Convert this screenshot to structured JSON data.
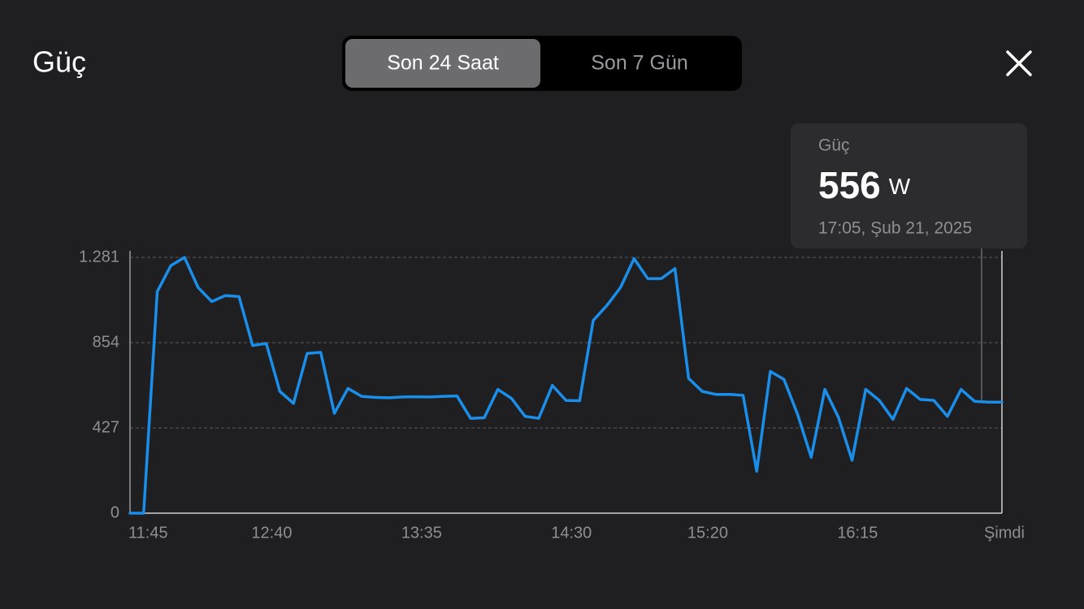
{
  "header": {
    "title": "Güç",
    "tabs": [
      "Son 24 Saat",
      "Son 7 Gün"
    ],
    "active_tab": 0
  },
  "chart_data": {
    "type": "line",
    "color": "#1a8ee8",
    "categories": [
      "11:45",
      null,
      null,
      null,
      null,
      null,
      null,
      null,
      null,
      null,
      null,
      "12:40",
      null,
      null,
      null,
      null,
      null,
      null,
      null,
      null,
      null,
      null,
      "13:35",
      null,
      null,
      null,
      null,
      null,
      null,
      null,
      null,
      null,
      null,
      "14:30",
      null,
      null,
      null,
      null,
      null,
      null,
      null,
      null,
      null,
      "15:20",
      null,
      null,
      null,
      null,
      null,
      null,
      null,
      null,
      null,
      null,
      "16:15",
      null,
      null,
      null,
      null,
      null,
      null,
      null,
      null,
      null,
      "Şimdi"
    ],
    "values": [
      0,
      0,
      1110,
      1240,
      1281,
      1130,
      1060,
      1090,
      1085,
      840,
      850,
      610,
      550,
      800,
      805,
      500,
      625,
      585,
      580,
      578,
      582,
      583,
      582,
      585,
      587,
      475,
      478,
      620,
      575,
      485,
      475,
      640,
      565,
      563,
      965,
      1040,
      1130,
      1275,
      1175,
      1175,
      1225,
      675,
      610,
      595,
      595,
      590,
      210,
      710,
      670,
      495,
      280,
      620,
      480,
      265,
      620,
      565,
      470,
      625,
      570,
      565,
      485,
      620,
      560,
      556,
      556
    ],
    "ylim": [
      0,
      1281
    ],
    "yticks": [
      0,
      427,
      854,
      {
        "value": 1281,
        "label": "1.281"
      }
    ],
    "grid": true,
    "tooltip": {
      "label": "Güç",
      "value": 556,
      "unit": "W",
      "time": "17:05, Şub 21, 2025"
    }
  }
}
